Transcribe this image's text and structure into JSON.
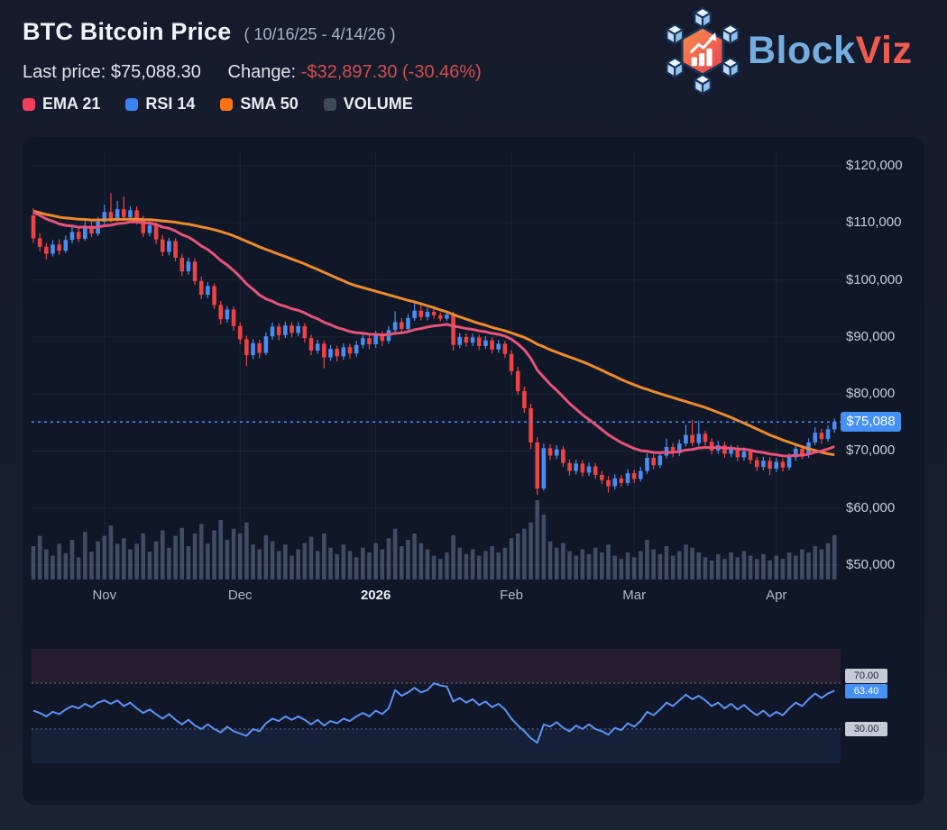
{
  "header": {
    "title": "BTC Bitcoin Price",
    "date_range": "( 10/16/25 - 4/14/26 )",
    "last_price_label": "Last price:",
    "last_price_value": "$75,088.30",
    "change_label": "Change:",
    "change_value": "-$32,897.30 (-30.46%)"
  },
  "brand": {
    "name_part1": "Block",
    "name_part2": "Viz"
  },
  "legend": [
    {
      "id": "ema21",
      "label": "EMA 21",
      "color": "#f43f5e"
    },
    {
      "id": "rsi14",
      "label": "RSI 14",
      "color": "#3b82f6"
    },
    {
      "id": "sma50",
      "label": "SMA 50",
      "color": "#f97316"
    },
    {
      "id": "volume",
      "label": "VOLUME",
      "color": "#3f4a5c"
    }
  ],
  "colors": {
    "up": "#4a8df2",
    "down": "#ee4343",
    "ema_line": "#e8537a",
    "sma_line": "#ef8a2b",
    "rsi_line": "#5b93f5",
    "volume_bar": "rgba(130,150,180,0.42)",
    "grid": "rgba(148,163,184,0.10)",
    "price_dotted": "#4a90f6",
    "rsi_band_line": "rgba(170,180,200,0.55)",
    "rsi_over_zone": "rgba(225,75,110,0.12)",
    "rsi_under_zone": "rgba(80,130,220,0.10)",
    "change_red": "#d44d4d",
    "accent_badge": "#4591f5"
  },
  "chart_data": {
    "type": "candlestick",
    "symbol": "BTC",
    "title": "BTC Bitcoin Price",
    "date_range": "10/16/25 - 4/14/26",
    "units": "USD, OHLC stored in thousands",
    "last_price": 75088.3,
    "price_line_label": "$75,088",
    "grid": true,
    "legend_position": "top-left",
    "ylim_usd": [
      47500,
      122300
    ],
    "y_ticks": [
      {
        "label": "$120,000",
        "value": 120000
      },
      {
        "label": "$110,000",
        "value": 110000
      },
      {
        "label": "$100,000",
        "value": 100000
      },
      {
        "label": "$90,000",
        "value": 90000
      },
      {
        "label": "$80,000",
        "value": 80000
      },
      {
        "label": "$70,000",
        "value": 70000
      },
      {
        "label": "$60,000",
        "value": 60000
      },
      {
        "label": "$50,000",
        "value": 50000
      }
    ],
    "x_ticks": [
      {
        "label": "Nov",
        "i": 11
      },
      {
        "label": "Dec",
        "i": 32
      },
      {
        "label": "2026",
        "i": 53,
        "bold": true
      },
      {
        "label": "Feb",
        "i": 74
      },
      {
        "label": "Mar",
        "i": 93
      },
      {
        "label": "Apr",
        "i": 115
      }
    ],
    "candles": [
      [
        111.3,
        112.6,
        106.5,
        107.3
      ],
      [
        107.3,
        108.2,
        105.0,
        105.8
      ],
      [
        105.8,
        106.5,
        103.6,
        104.6
      ],
      [
        104.6,
        107.0,
        104.1,
        106.2
      ],
      [
        106.2,
        107.1,
        104.4,
        105.1
      ],
      [
        105.1,
        107.8,
        104.7,
        107.0
      ],
      [
        107.0,
        109.3,
        106.4,
        108.4
      ],
      [
        108.4,
        109.1,
        106.6,
        107.2
      ],
      [
        107.2,
        110.4,
        106.8,
        109.5
      ],
      [
        109.5,
        110.2,
        107.5,
        108.1
      ],
      [
        108.1,
        111.0,
        107.7,
        110.2
      ],
      [
        110.2,
        113.2,
        109.8,
        111.9
      ],
      [
        111.9,
        115.2,
        110.1,
        110.6
      ],
      [
        110.6,
        113.8,
        110.2,
        112.4
      ],
      [
        112.4,
        114.6,
        110.5,
        111.0
      ],
      [
        111.0,
        112.9,
        110.3,
        112.2
      ],
      [
        112.2,
        112.9,
        109.7,
        110.4
      ],
      [
        110.4,
        111.2,
        107.5,
        108.2
      ],
      [
        108.2,
        110.3,
        107.6,
        109.6
      ],
      [
        109.6,
        110.1,
        106.3,
        107.1
      ],
      [
        107.1,
        107.9,
        104.2,
        104.9
      ],
      [
        104.9,
        107.4,
        104.3,
        106.8
      ],
      [
        106.8,
        107.3,
        103.2,
        103.9
      ],
      [
        103.9,
        104.6,
        100.7,
        101.5
      ],
      [
        101.5,
        103.9,
        100.9,
        103.2
      ],
      [
        103.2,
        103.8,
        99.1,
        99.8
      ],
      [
        99.8,
        100.6,
        96.6,
        97.4
      ],
      [
        97.4,
        99.6,
        96.8,
        98.9
      ],
      [
        98.9,
        99.4,
        94.9,
        95.6
      ],
      [
        95.6,
        96.3,
        92.2,
        93.1
      ],
      [
        93.1,
        95.4,
        92.5,
        94.8
      ],
      [
        94.8,
        95.3,
        91.1,
        91.9
      ],
      [
        91.9,
        92.6,
        88.7,
        89.6
      ],
      [
        89.6,
        90.2,
        84.9,
        86.8
      ],
      [
        86.8,
        89.6,
        86.1,
        88.9
      ],
      [
        88.9,
        89.5,
        86.3,
        87.2
      ],
      [
        87.2,
        90.8,
        86.8,
        90.1
      ],
      [
        90.1,
        92.5,
        89.5,
        91.8
      ],
      [
        91.8,
        92.4,
        89.4,
        90.3
      ],
      [
        90.3,
        92.7,
        89.8,
        92.0
      ],
      [
        92.0,
        92.6,
        89.9,
        90.7
      ],
      [
        90.7,
        92.6,
        90.1,
        91.9
      ],
      [
        91.9,
        92.4,
        89.0,
        89.8
      ],
      [
        89.8,
        90.4,
        86.8,
        87.6
      ],
      [
        87.6,
        89.5,
        87.0,
        88.8
      ],
      [
        88.8,
        89.3,
        84.5,
        86.4
      ],
      [
        86.4,
        88.6,
        85.8,
        87.9
      ],
      [
        87.9,
        88.5,
        85.7,
        86.6
      ],
      [
        86.6,
        88.9,
        86.0,
        88.2
      ],
      [
        88.2,
        88.8,
        86.2,
        87.1
      ],
      [
        87.1,
        89.3,
        86.5,
        88.6
      ],
      [
        88.6,
        90.5,
        88.0,
        89.8
      ],
      [
        89.8,
        90.4,
        87.8,
        88.7
      ],
      [
        88.7,
        91.1,
        88.1,
        90.4
      ],
      [
        90.4,
        91.0,
        88.4,
        89.3
      ],
      [
        89.3,
        91.9,
        88.8,
        91.2
      ],
      [
        91.2,
        94.5,
        90.7,
        92.6
      ],
      [
        92.6,
        93.3,
        90.6,
        91.4
      ],
      [
        91.4,
        94.0,
        90.9,
        93.3
      ],
      [
        93.3,
        96.2,
        92.8,
        94.6
      ],
      [
        94.6,
        95.9,
        92.9,
        93.5
      ],
      [
        93.5,
        95.1,
        92.9,
        94.4
      ],
      [
        94.4,
        95.0,
        93.2,
        93.8
      ],
      [
        93.8,
        94.3,
        92.7,
        93.2
      ],
      [
        93.2,
        94.6,
        92.8,
        93.9
      ],
      [
        93.9,
        94.4,
        87.6,
        88.6
      ],
      [
        88.6,
        90.7,
        88.0,
        90.0
      ],
      [
        90.0,
        90.6,
        88.3,
        89.0
      ],
      [
        89.0,
        90.6,
        88.4,
        89.9
      ],
      [
        89.9,
        90.4,
        87.7,
        88.4
      ],
      [
        88.4,
        90.1,
        87.9,
        89.4
      ],
      [
        89.4,
        89.9,
        87.1,
        87.8
      ],
      [
        87.8,
        89.5,
        87.2,
        88.8
      ],
      [
        88.8,
        89.3,
        86.3,
        87.0
      ],
      [
        87.0,
        87.7,
        83.3,
        84.0
      ],
      [
        84.0,
        84.8,
        79.8,
        80.5
      ],
      [
        80.5,
        81.3,
        76.7,
        77.5
      ],
      [
        77.5,
        78.3,
        70.3,
        71.5
      ],
      [
        71.5,
        72.4,
        62.3,
        63.4
      ],
      [
        63.4,
        71.3,
        63.0,
        70.5
      ],
      [
        70.5,
        71.2,
        68.4,
        69.2
      ],
      [
        69.2,
        71.0,
        68.6,
        70.3
      ],
      [
        70.3,
        70.9,
        67.2,
        67.9
      ],
      [
        67.9,
        68.5,
        65.7,
        66.5
      ],
      [
        66.5,
        68.5,
        65.9,
        67.8
      ],
      [
        67.8,
        68.4,
        65.5,
        66.2
      ],
      [
        66.2,
        68.0,
        65.6,
        67.3
      ],
      [
        67.3,
        67.9,
        65.1,
        65.8
      ],
      [
        65.8,
        66.5,
        64.2,
        64.9
      ],
      [
        64.9,
        65.6,
        62.7,
        63.8
      ],
      [
        63.8,
        65.9,
        63.2,
        65.2
      ],
      [
        65.2,
        65.8,
        63.7,
        64.4
      ],
      [
        64.4,
        66.8,
        63.9,
        66.1
      ],
      [
        66.1,
        66.7,
        64.4,
        65.1
      ],
      [
        65.1,
        67.2,
        64.6,
        66.5
      ],
      [
        66.5,
        69.6,
        66.0,
        68.8
      ],
      [
        68.8,
        69.4,
        66.8,
        67.5
      ],
      [
        67.5,
        69.9,
        67.0,
        69.2
      ],
      [
        69.2,
        72.2,
        68.7,
        70.7
      ],
      [
        70.7,
        71.4,
        68.9,
        69.6
      ],
      [
        69.6,
        72.0,
        69.1,
        71.3
      ],
      [
        71.3,
        74.6,
        70.8,
        72.8
      ],
      [
        72.8,
        75.5,
        70.9,
        71.4
      ],
      [
        71.4,
        75.3,
        70.9,
        73.0
      ],
      [
        73.0,
        73.6,
        70.9,
        71.6
      ],
      [
        71.6,
        72.2,
        69.4,
        70.1
      ],
      [
        70.1,
        71.8,
        69.5,
        71.0
      ],
      [
        71.0,
        71.6,
        68.8,
        69.5
      ],
      [
        69.5,
        71.1,
        68.9,
        70.4
      ],
      [
        70.4,
        71.0,
        68.2,
        68.9
      ],
      [
        68.9,
        70.6,
        68.3,
        69.9
      ],
      [
        69.9,
        70.4,
        67.7,
        68.4
      ],
      [
        68.4,
        69.0,
        66.5,
        67.2
      ],
      [
        67.2,
        69.0,
        66.6,
        68.3
      ],
      [
        68.3,
        68.9,
        65.8,
        66.9
      ],
      [
        66.9,
        68.8,
        66.3,
        68.1
      ],
      [
        68.1,
        68.7,
        66.4,
        67.1
      ],
      [
        67.1,
        69.6,
        66.6,
        68.9
      ],
      [
        68.9,
        71.1,
        68.3,
        70.4
      ],
      [
        70.4,
        71.0,
        68.6,
        69.3
      ],
      [
        69.3,
        72.2,
        68.8,
        71.5
      ],
      [
        71.5,
        74.2,
        71.0,
        73.2
      ],
      [
        73.2,
        73.9,
        71.3,
        72.1
      ],
      [
        72.1,
        74.5,
        71.6,
        73.8
      ],
      [
        73.8,
        75.7,
        73.2,
        75.088
      ]
    ],
    "volume_rel": [
      0.42,
      0.55,
      0.38,
      0.3,
      0.45,
      0.33,
      0.5,
      0.28,
      0.6,
      0.35,
      0.48,
      0.55,
      0.68,
      0.45,
      0.52,
      0.38,
      0.45,
      0.58,
      0.35,
      0.48,
      0.62,
      0.4,
      0.55,
      0.65,
      0.42,
      0.58,
      0.7,
      0.45,
      0.62,
      0.75,
      0.5,
      0.64,
      0.58,
      0.72,
      0.44,
      0.38,
      0.56,
      0.48,
      0.36,
      0.44,
      0.3,
      0.38,
      0.46,
      0.54,
      0.36,
      0.58,
      0.4,
      0.32,
      0.44,
      0.36,
      0.28,
      0.4,
      0.34,
      0.46,
      0.38,
      0.52,
      0.64,
      0.42,
      0.5,
      0.58,
      0.46,
      0.38,
      0.3,
      0.26,
      0.34,
      0.56,
      0.4,
      0.32,
      0.38,
      0.3,
      0.36,
      0.42,
      0.34,
      0.4,
      0.52,
      0.58,
      0.64,
      0.72,
      1.0,
      0.82,
      0.48,
      0.4,
      0.46,
      0.36,
      0.3,
      0.38,
      0.32,
      0.4,
      0.34,
      0.44,
      0.3,
      0.26,
      0.34,
      0.28,
      0.36,
      0.5,
      0.38,
      0.32,
      0.42,
      0.3,
      0.36,
      0.44,
      0.4,
      0.34,
      0.28,
      0.24,
      0.32,
      0.26,
      0.34,
      0.28,
      0.36,
      0.3,
      0.26,
      0.32,
      0.24,
      0.3,
      0.26,
      0.34,
      0.3,
      0.38,
      0.34,
      0.42,
      0.38,
      0.46,
      0.56
    ],
    "overlays": {
      "ema_period": 21,
      "sma_period": 50,
      "ma_seed": 112.3,
      "ma_seed_count": 20
    },
    "rsi": {
      "period": 14,
      "upper": 70,
      "lower": 30,
      "upper_label": "70.00",
      "lower_label": "30.00",
      "last_value": 63.4,
      "last_label": "63.40",
      "values": [
        46,
        44,
        41,
        45,
        43,
        47,
        50,
        48,
        52,
        49,
        53,
        55,
        52,
        55,
        50,
        53,
        48,
        44,
        47,
        43,
        39,
        43,
        38,
        34,
        38,
        33,
        30,
        34,
        30,
        27,
        32,
        28,
        26,
        24,
        30,
        28,
        35,
        39,
        37,
        41,
        38,
        41,
        38,
        34,
        38,
        33,
        37,
        35,
        39,
        37,
        41,
        44,
        41,
        46,
        43,
        48,
        64,
        59,
        62,
        66,
        62,
        64,
        70,
        68,
        67,
        54,
        57,
        53,
        56,
        51,
        54,
        49,
        52,
        47,
        39,
        33,
        28,
        22,
        18,
        34,
        32,
        36,
        31,
        28,
        33,
        30,
        34,
        30,
        28,
        25,
        31,
        29,
        35,
        32,
        37,
        45,
        42,
        47,
        53,
        50,
        55,
        60,
        56,
        59,
        55,
        50,
        53,
        48,
        52,
        47,
        51,
        46,
        42,
        46,
        41,
        45,
        42,
        48,
        53,
        50,
        56,
        61,
        57,
        61,
        63.4
      ]
    }
  }
}
